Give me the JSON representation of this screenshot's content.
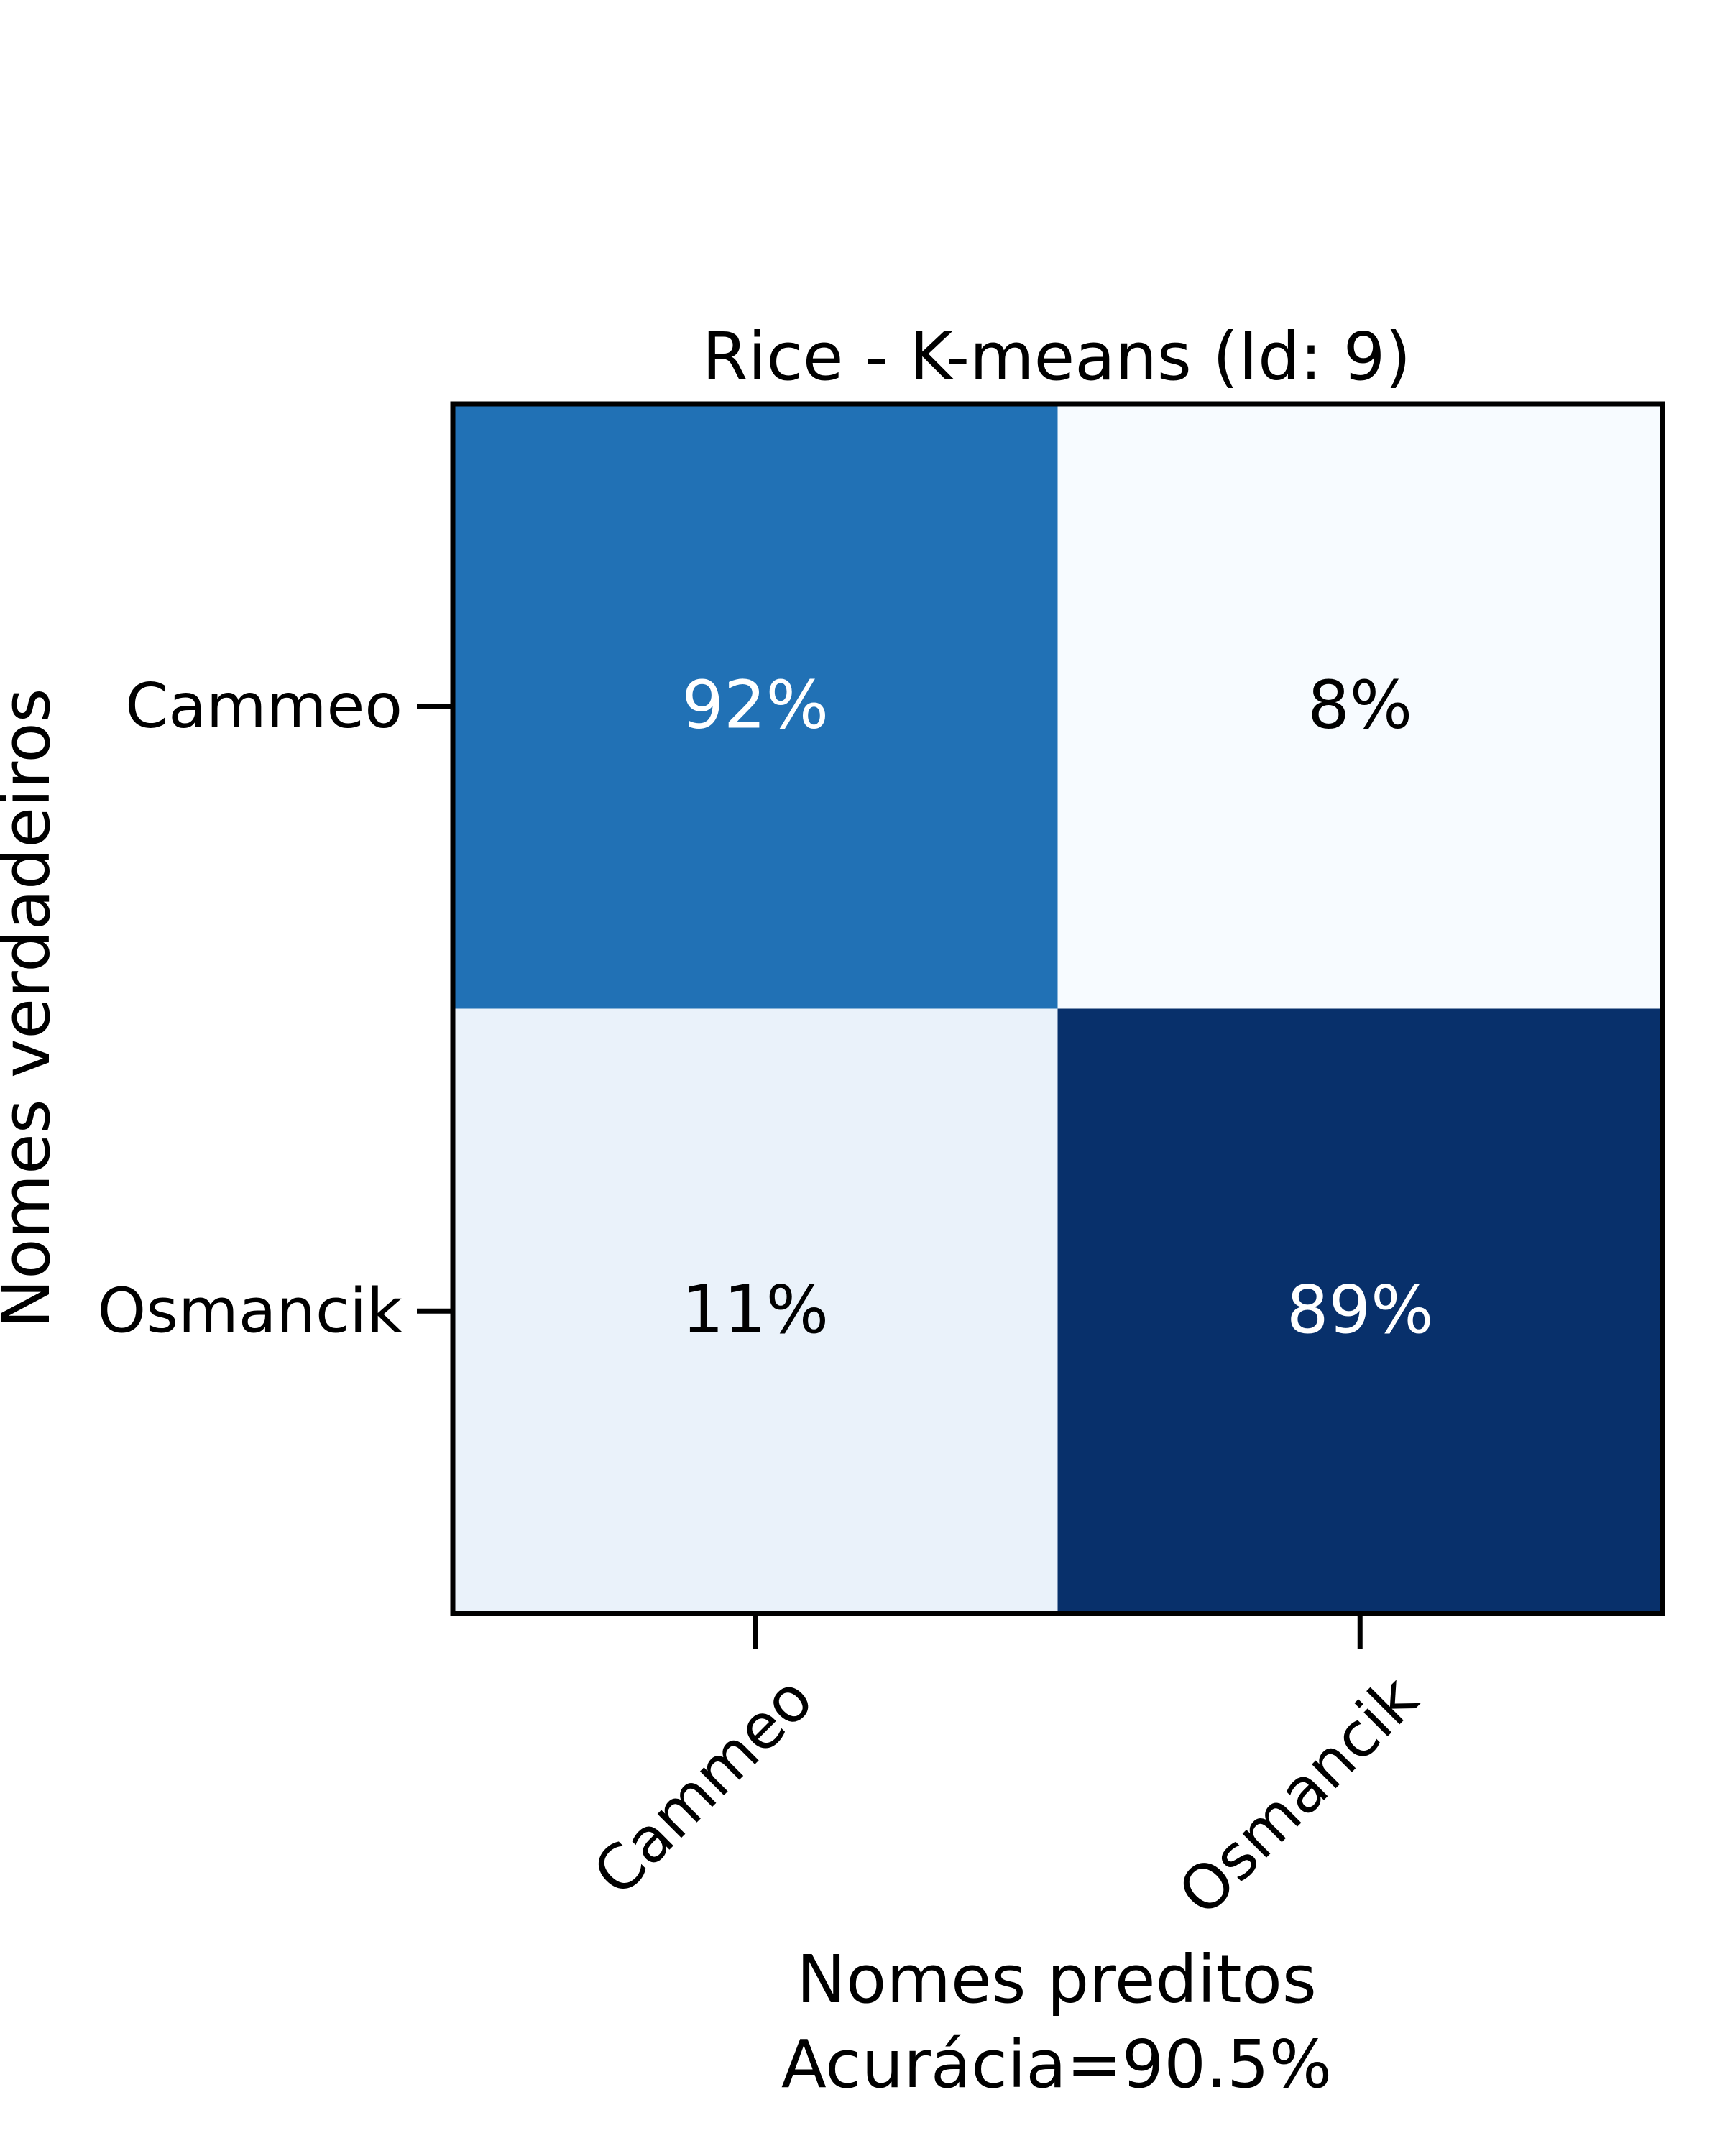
{
  "chart_data": {
    "type": "heatmap",
    "title": "Rice - K-means (Id: 9)",
    "xlabel": "Nomes preditos",
    "xlabel_secondary": "Acurácia=90.5%",
    "ylabel": "Nomes verdadeiros",
    "x_categories": [
      "Cammeo",
      "Osmancik"
    ],
    "y_categories": [
      "Cammeo",
      "Osmancik"
    ],
    "values": [
      [
        92,
        8
      ],
      [
        11,
        89
      ]
    ],
    "cell_labels": [
      [
        "92%",
        "8%"
      ],
      [
        "11%",
        "89%"
      ]
    ],
    "colormap": "Blues",
    "value_range": [
      0,
      100
    ],
    "cell_colors": [
      [
        "#2171b5",
        "#f7fbff"
      ],
      [
        "#eaf2fa",
        "#08306b"
      ]
    ],
    "text_colors": [
      [
        "#ffffff",
        "#000000"
      ],
      [
        "#000000",
        "#ffffff"
      ]
    ]
  }
}
